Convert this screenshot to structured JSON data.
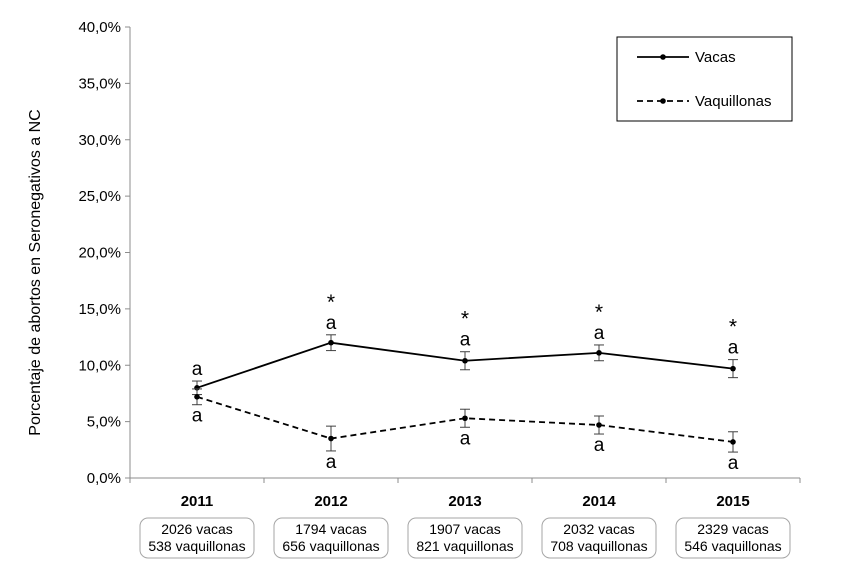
{
  "chart_data": {
    "type": "line",
    "ylabel": "Porcentaje de abortos en Seronegativos a NC",
    "ylim": [
      0,
      40
    ],
    "yticks": [
      "0,0%",
      "5,0%",
      "10,0%",
      "15,0%",
      "20,0%",
      "25,0%",
      "30,0%",
      "35,0%",
      "40,0%"
    ],
    "categories": [
      "2011",
      "2012",
      "2013",
      "2014",
      "2015"
    ],
    "category_notes": [
      [
        "2026 vacas",
        "538 vaquillonas"
      ],
      [
        "1794 vacas",
        "656 vaquillonas"
      ],
      [
        "1907 vacas",
        "821 vaquillonas"
      ],
      [
        "2032 vacas",
        "708 vaquillonas"
      ],
      [
        "2329 vacas",
        "546 vaquillonas"
      ]
    ],
    "series": [
      {
        "name": "Vacas",
        "style": "solid",
        "color": "#000000",
        "values": [
          8.0,
          12.0,
          10.4,
          11.1,
          9.7
        ],
        "error": [
          0.6,
          0.7,
          0.8,
          0.7,
          0.8
        ],
        "labels": [
          "a",
          "a",
          "a",
          "a",
          "a"
        ]
      },
      {
        "name": "Vaquillonas",
        "style": "dashed",
        "color": "#000000",
        "values": [
          7.2,
          3.5,
          5.3,
          4.7,
          3.2
        ],
        "error": [
          0.7,
          1.1,
          0.8,
          0.8,
          0.9
        ],
        "labels": [
          "a",
          "a",
          "a",
          "a",
          "a"
        ]
      }
    ],
    "significance_marks": [
      "",
      "*",
      "*",
      "*",
      "*"
    ],
    "legend_position": "top-right",
    "grid": false
  }
}
